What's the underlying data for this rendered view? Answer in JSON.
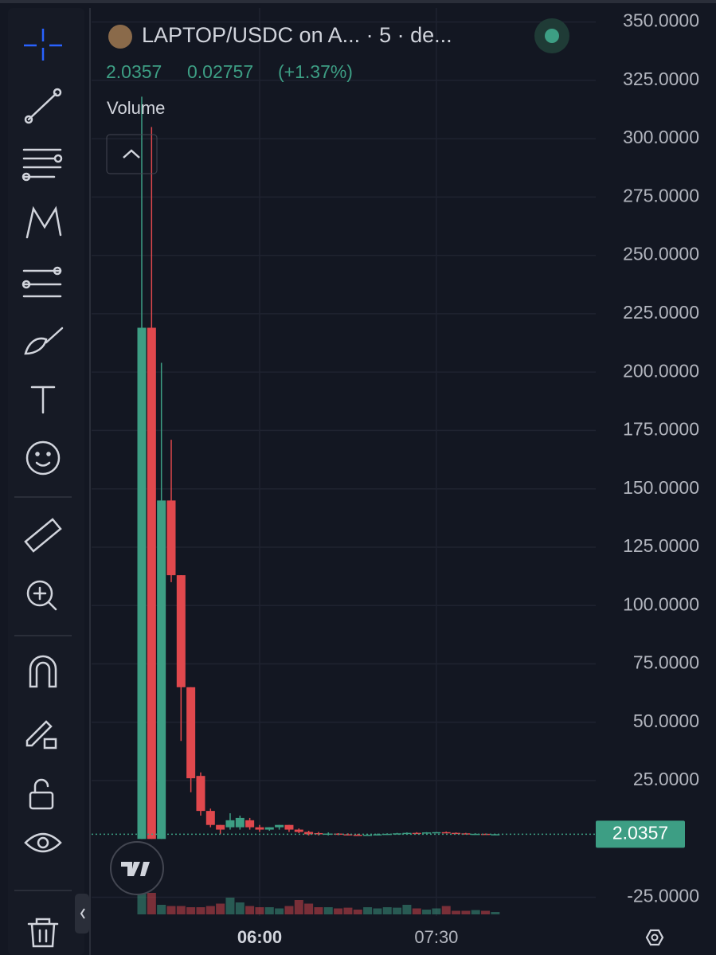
{
  "header": {
    "symbol": "LAPTOP/USDC on A... · 5 · de...",
    "price": "2.0357",
    "change": "0.02757",
    "change_pct": "(+1.37%)",
    "study": "Volume"
  },
  "chart_data": {
    "type": "candlestick",
    "categories": [
      null,
      null,
      null,
      null,
      null,
      null,
      null,
      null,
      null,
      null,
      null,
      null,
      "06:00",
      null,
      null,
      null,
      null,
      null,
      null,
      null,
      null,
      null,
      null,
      null,
      null,
      null,
      null,
      null,
      null,
      null,
      "07:30",
      null,
      null,
      null,
      null,
      null,
      null
    ],
    "open": [
      0,
      219,
      0,
      145,
      113,
      65,
      27,
      12,
      6,
      5,
      5,
      8,
      5,
      4,
      5,
      6,
      4,
      3,
      2.5,
      2,
      2.3,
      2,
      1.8,
      1.6,
      1.8,
      2,
      2.2,
      2.4,
      2.6,
      2.5,
      2.8,
      2.9,
      2.6,
      2.4,
      2.1,
      2.2,
      2
    ],
    "high": [
      318,
      305,
      204,
      171,
      113,
      65,
      28.5,
      13,
      6,
      11,
      10,
      9,
      6,
      5,
      6,
      6,
      4.5,
      3.5,
      3,
      2.8,
      2.5,
      2.4,
      2.2,
      2,
      2.3,
      2.4,
      2.6,
      2.8,
      2.9,
      2.9,
      3,
      3.2,
      2.8,
      2.6,
      2.4,
      2.3,
      2.2
    ],
    "low": [
      0,
      0,
      0,
      110,
      42,
      20,
      10,
      5,
      2,
      4,
      4,
      4,
      3,
      3.5,
      4,
      3,
      2.5,
      1.5,
      1.5,
      1.5,
      1.6,
      1.5,
      1.4,
      1.3,
      1.6,
      1.8,
      2,
      2.2,
      2.3,
      2.3,
      2.5,
      2.5,
      2.2,
      2,
      1.9,
      1.9,
      1.9
    ],
    "close": [
      219,
      0,
      145,
      113,
      65,
      26,
      12,
      6,
      4,
      8,
      9,
      5,
      4,
      5,
      6,
      4,
      3,
      2,
      2,
      2.3,
      2,
      1.8,
      1.6,
      1.8,
      2,
      2.2,
      2.4,
      2.6,
      2.5,
      2.8,
      2.9,
      2.6,
      2.4,
      2.1,
      2.2,
      2,
      2.0357
    ],
    "volume": [
      100,
      90,
      40,
      35,
      35,
      30,
      30,
      35,
      45,
      70,
      50,
      35,
      30,
      30,
      25,
      35,
      60,
      45,
      30,
      30,
      25,
      28,
      20,
      30,
      25,
      30,
      28,
      40,
      25,
      20,
      25,
      35,
      15,
      15,
      18,
      15,
      10
    ],
    "up_color": "#3d9e84",
    "down_color": "#e0484d",
    "ylim": [
      -33,
      356
    ],
    "yticks": [
      {
        "value": -25,
        "label": "-25.0000"
      },
      {
        "value": 25,
        "label": "25.0000"
      },
      {
        "value": 50,
        "label": "50.0000"
      },
      {
        "value": 75,
        "label": "75.0000"
      },
      {
        "value": 100,
        "label": "100.0000"
      },
      {
        "value": 125,
        "label": "125.0000"
      },
      {
        "value": 150,
        "label": "150.0000"
      },
      {
        "value": 175,
        "label": "175.0000"
      },
      {
        "value": 200,
        "label": "200.0000"
      },
      {
        "value": 225,
        "label": "225.0000"
      },
      {
        "value": 250,
        "label": "250.0000"
      },
      {
        "value": 275,
        "label": "275.0000"
      },
      {
        "value": 300,
        "label": "300.0000"
      },
      {
        "value": 325,
        "label": "325.0000"
      },
      {
        "value": 350,
        "label": "350.0000"
      }
    ],
    "last_price": 2.0357,
    "grid": true
  }
}
